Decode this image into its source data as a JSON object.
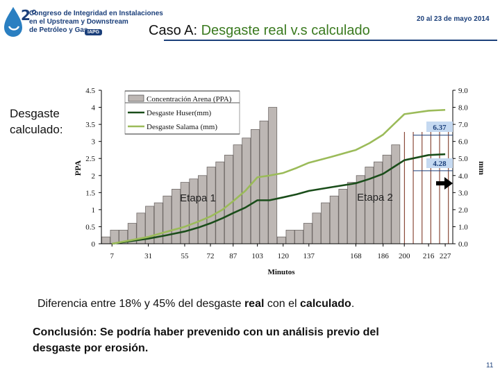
{
  "header": {
    "logo_number": "2°",
    "logo_lines": [
      "Congreso de Integridad en Instalaciones",
      "en el Upstream y Downstream",
      "de Petróleo y Gas"
    ],
    "logo_badge": "IAPG",
    "date": "20 al 23 de mayo 2014",
    "title_prefix": "Caso A:",
    "title_main": "Desgaste real v.s calculado",
    "side_label": "Desgaste calculado:"
  },
  "colors": {
    "brand": "#1b3f7a",
    "title_accent": "#3a7a1f"
  },
  "chart_data": {
    "type": "bar",
    "title": "",
    "xlabel": "Minutos",
    "ylabel": "PPA",
    "y2label": "mm",
    "ylim": [
      0,
      4.5
    ],
    "y2lim": [
      0,
      9.0
    ],
    "y_ticks": [
      "0",
      "0.5",
      "1",
      "1.5",
      "2",
      "2.5",
      "3",
      "3.5",
      "4",
      "4.5"
    ],
    "y2_ticks": [
      "0.0",
      "1.0",
      "2.0",
      "3.0",
      "4.0",
      "5.0",
      "6.0",
      "7.0",
      "8.0",
      "9.0"
    ],
    "x_tick_labels": [
      "7",
      "31",
      "55",
      "72",
      "87",
      "103",
      "120",
      "137",
      "168",
      "186",
      "200",
      "216",
      "227"
    ],
    "bars_name": "Concentración Arena (PPA)",
    "bars": [
      0.2,
      0.4,
      0.4,
      0.6,
      0.9,
      1.1,
      1.2,
      1.4,
      1.6,
      1.8,
      1.9,
      2.0,
      2.25,
      2.4,
      2.6,
      2.9,
      3.1,
      3.35,
      3.6,
      4.0,
      0.2,
      0.4,
      0.4,
      0.6,
      0.9,
      1.2,
      1.4,
      1.6,
      1.8,
      2.0,
      2.25,
      2.4,
      2.6,
      2.9,
      0,
      0,
      0,
      0,
      0,
      0
    ],
    "series": [
      {
        "name": "Desgaste Huser(mm)",
        "axis": "right",
        "color": "#1a4d1a",
        "values": [
          0.0,
          0.15,
          0.3,
          0.5,
          0.72,
          0.95,
          1.2,
          1.5,
          1.8,
          2.12,
          2.55,
          2.55,
          2.72,
          2.9,
          3.1,
          3.32,
          3.55,
          3.8,
          4.1,
          4.5,
          4.9,
          5.2,
          5.25
        ]
      },
      {
        "name": "Desgaste Salama (mm)",
        "axis": "right",
        "color": "#9bbb59",
        "values": [
          0.0,
          0.2,
          0.4,
          0.7,
          1.0,
          1.3,
          1.6,
          2.0,
          2.5,
          3.1,
          3.9,
          4.0,
          4.15,
          4.45,
          4.75,
          5.1,
          5.5,
          5.9,
          6.4,
          7.0,
          7.6,
          7.8,
          7.85
        ]
      }
    ],
    "series_x_minutes": [
      7,
      19,
      31,
      43,
      55,
      64,
      72,
      80,
      87,
      95,
      103,
      111,
      120,
      129,
      137,
      152,
      168,
      177,
      186,
      193,
      200,
      216,
      227
    ],
    "legend_position": "top-left",
    "annotations": [
      {
        "text": "6.37",
        "value": 6.37
      },
      {
        "text": "4.28",
        "value": 4.28
      },
      {
        "text": "Etapa 1"
      },
      {
        "text": "Etapa 2"
      }
    ]
  },
  "note": {
    "before": "Diferencia entre 18% y 45% del desgaste ",
    "strong1": "real",
    "middle": " con el ",
    "strong2": "calculado",
    "after": "."
  },
  "conclusion": "Conclusión: Se podría haber prevenido con un análisis previo del desgaste por erosión.",
  "page_number": "11"
}
